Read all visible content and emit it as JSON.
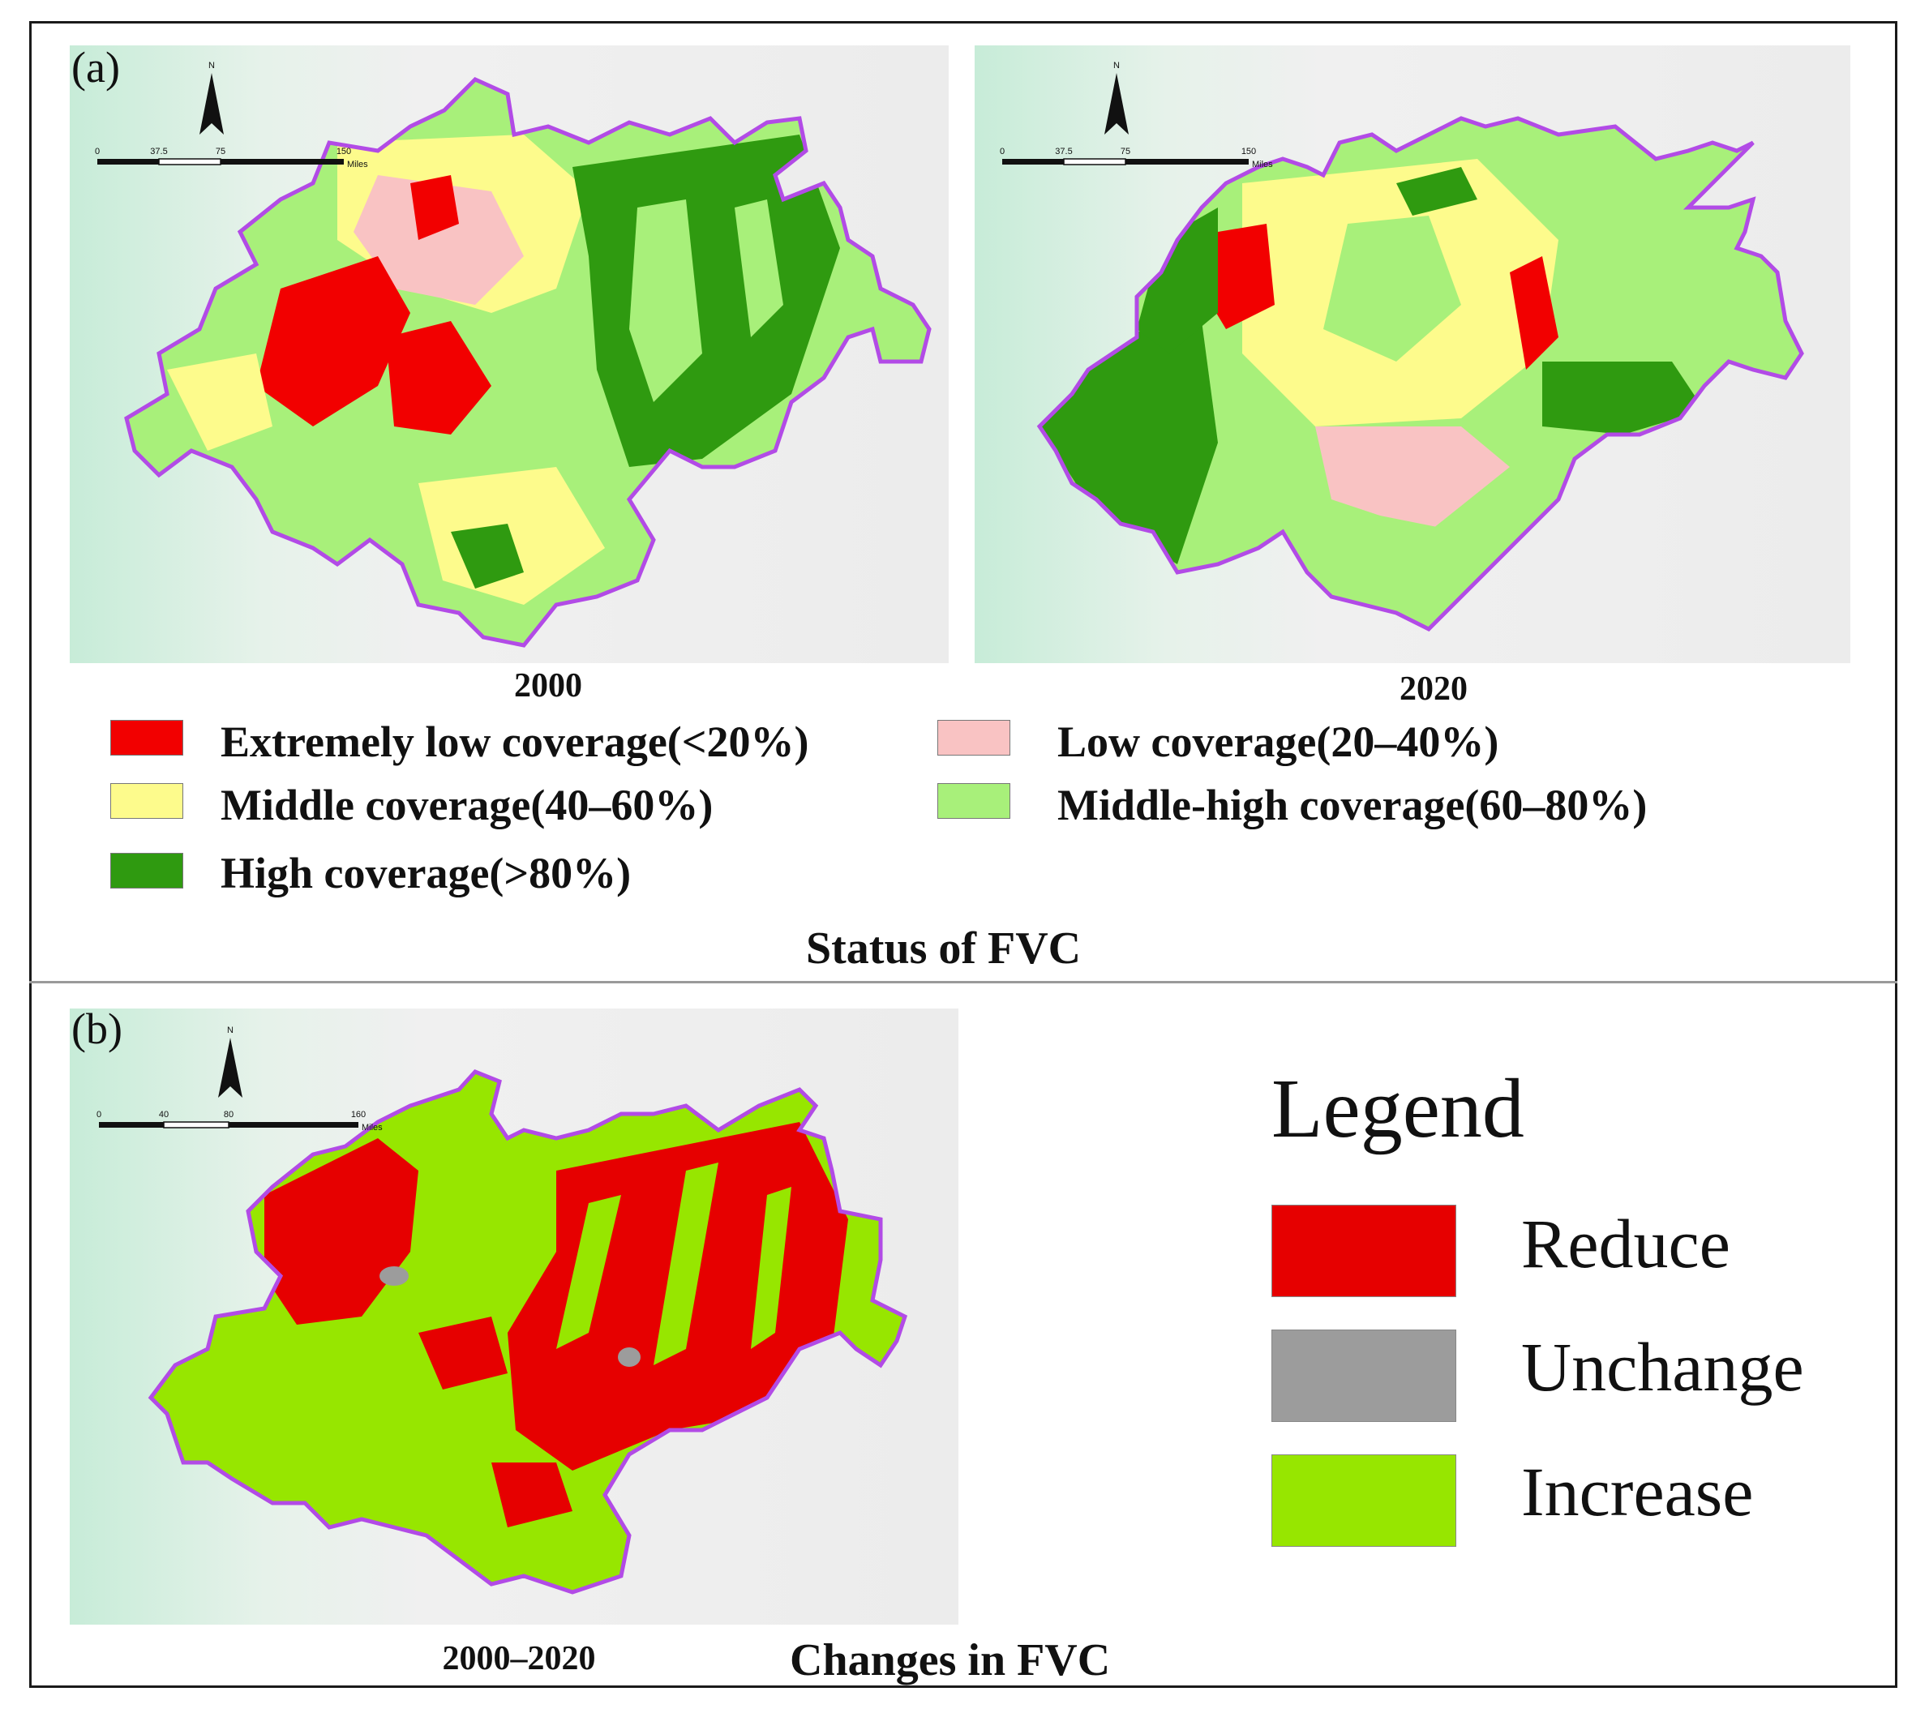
{
  "colors": {
    "extremely_low": "#f20000",
    "low": "#f9c3c3",
    "middle": "#fdfb8c",
    "middle_high": "#a8f07a",
    "high": "#2f9a10",
    "reduce": "#e60000",
    "unchange": "#9c9c9c",
    "increase": "#97e600",
    "boundary": "#b24be6",
    "hillshade": "#eef1ee",
    "terrain_green": "#bfe9d2"
  },
  "panel_a": {
    "label": "(a)",
    "map_2000": {
      "year": "2000",
      "north": "N",
      "scale": {
        "ticks": [
          "0",
          "37.5",
          "75",
          "150"
        ],
        "unit": "Miles"
      }
    },
    "map_2020": {
      "year": "2020",
      "north": "N",
      "scale": {
        "ticks": [
          "0",
          "37.5",
          "75",
          "150"
        ],
        "unit": "Miles"
      }
    },
    "legend": [
      {
        "key": "extremely_low",
        "label": "Extremely low coverage(<20%)"
      },
      {
        "key": "low",
        "label": "Low coverage(20–40%)"
      },
      {
        "key": "middle",
        "label": "Middle coverage(40–60%)"
      },
      {
        "key": "middle_high",
        "label": "Middle-high coverage(60–80%)"
      },
      {
        "key": "high",
        "label": "High coverage(>80%)"
      }
    ],
    "title": "Status of FVC"
  },
  "panel_b": {
    "label": "(b)",
    "map": {
      "year": "2000–2020",
      "north": "N",
      "scale": {
        "ticks": [
          "0",
          "40",
          "80",
          "160"
        ],
        "unit": "Miles"
      }
    },
    "title": "Changes in FVC",
    "legend_title": "Legend",
    "legend": [
      {
        "key": "reduce",
        "label": "Reduce"
      },
      {
        "key": "unchange",
        "label": "Unchange"
      },
      {
        "key": "increase",
        "label": "Increase"
      }
    ]
  }
}
